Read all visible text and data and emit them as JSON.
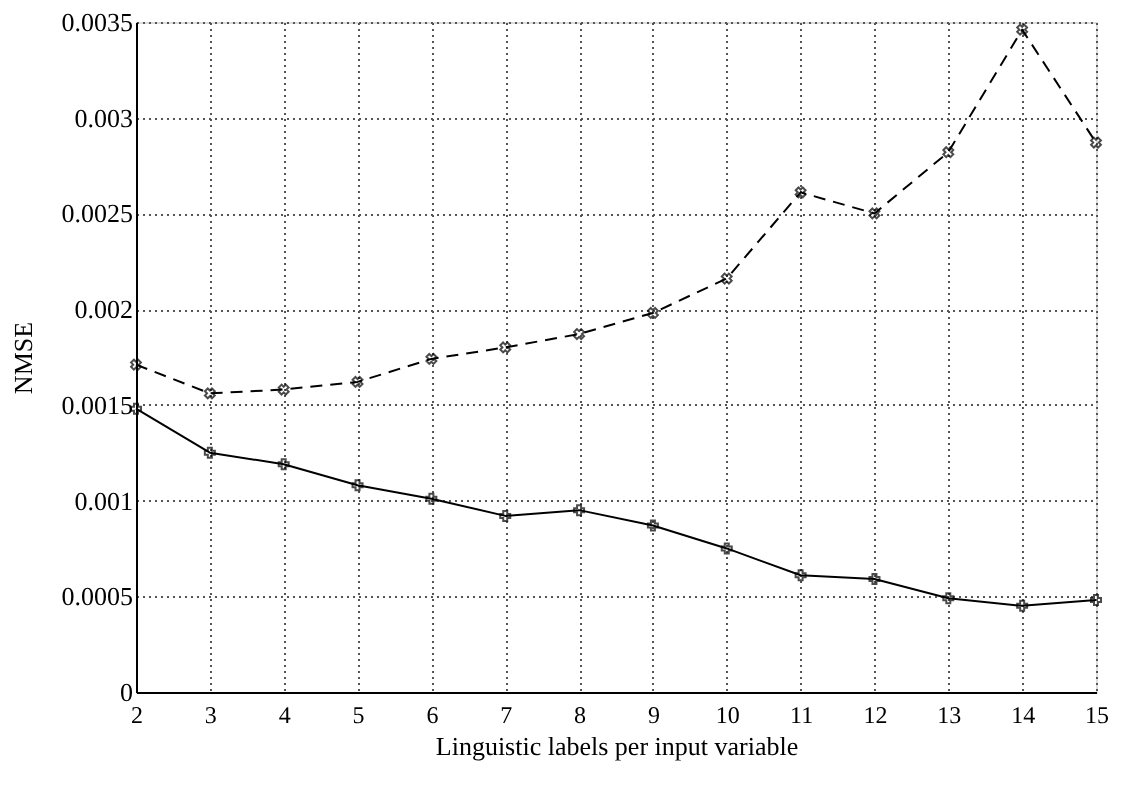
{
  "chart_data": {
    "type": "line",
    "xlabel": "Linguistic labels per input variable",
    "ylabel": "NMSE",
    "x": [
      2,
      3,
      4,
      5,
      6,
      7,
      8,
      9,
      10,
      11,
      12,
      13,
      14,
      15
    ],
    "series": [
      {
        "color": "#000000",
        "line_style": "dashed",
        "marker": "cross",
        "values": [
          0.00171,
          0.00156,
          0.00158,
          0.00162,
          0.00174,
          0.0018,
          0.00187,
          0.00198,
          0.00216,
          0.00261,
          0.0025,
          0.00282,
          0.00346,
          0.00287
        ]
      },
      {
        "color": "#000000",
        "line_style": "solid",
        "marker": "cross",
        "values": [
          0.00148,
          0.00125,
          0.00119,
          0.00108,
          0.00101,
          0.00092,
          0.00095,
          0.00087,
          0.00075,
          0.00061,
          0.00059,
          0.00049,
          0.00045,
          0.00048
        ]
      }
    ],
    "xlim": [
      2,
      15
    ],
    "xticks": [
      2,
      3,
      4,
      5,
      6,
      7,
      8,
      9,
      10,
      11,
      12,
      13,
      14,
      15
    ],
    "ylim": [
      0,
      0.0035
    ],
    "yticks": [
      0,
      0.0005,
      0.001,
      0.0015,
      0.002,
      0.0025,
      0.003,
      0.0035
    ],
    "grid": true
  }
}
